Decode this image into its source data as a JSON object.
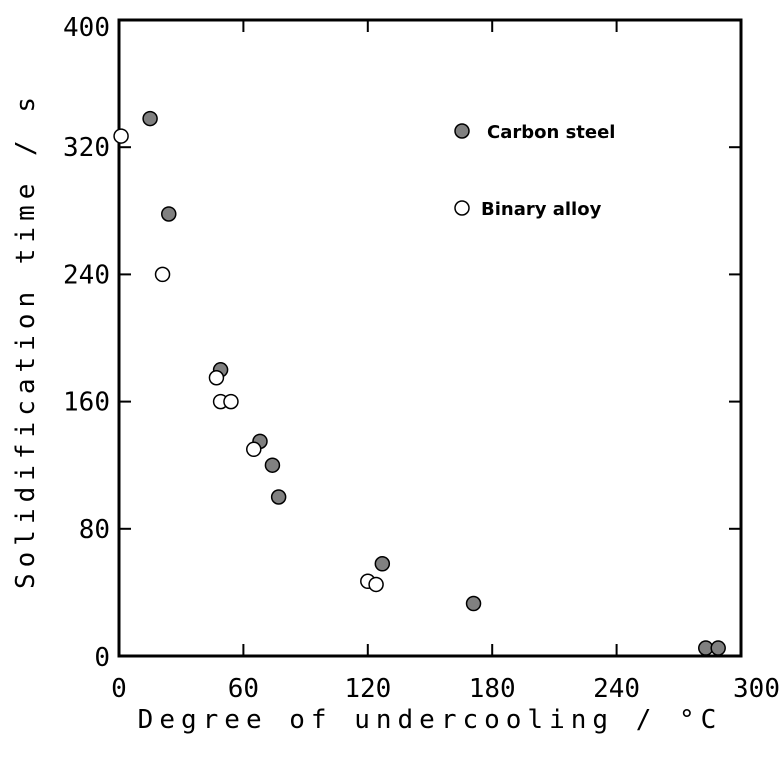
{
  "chart_data": {
    "type": "scatter",
    "xlabel": "Degree of undercooling / °C",
    "ylabel": "Solidification time / s",
    "xlim": [
      0,
      300
    ],
    "ylim": [
      0,
      400
    ],
    "x_ticks": [
      0,
      60,
      120,
      180,
      240,
      300
    ],
    "y_ticks": [
      0,
      80,
      160,
      240,
      320,
      400
    ],
    "grid": false,
    "legend_position": "top-right",
    "series": [
      {
        "name": "Carbon steel",
        "marker": "filled-circle",
        "color": "#808080",
        "points": [
          {
            "x": 15,
            "y": 338
          },
          {
            "x": 24,
            "y": 278
          },
          {
            "x": 49,
            "y": 180
          },
          {
            "x": 68,
            "y": 135
          },
          {
            "x": 74,
            "y": 120
          },
          {
            "x": 77,
            "y": 100
          },
          {
            "x": 127,
            "y": 58
          },
          {
            "x": 171,
            "y": 33
          },
          {
            "x": 283,
            "y": 5
          },
          {
            "x": 289,
            "y": 5
          }
        ]
      },
      {
        "name": "Binary alloy",
        "marker": "open-circle",
        "color": "#ffffff",
        "points": [
          {
            "x": 1,
            "y": 327
          },
          {
            "x": 21,
            "y": 240
          },
          {
            "x": 47,
            "y": 175
          },
          {
            "x": 49,
            "y": 160
          },
          {
            "x": 54,
            "y": 160
          },
          {
            "x": 65,
            "y": 130
          },
          {
            "x": 120,
            "y": 47
          },
          {
            "x": 124,
            "y": 45
          }
        ]
      }
    ]
  }
}
